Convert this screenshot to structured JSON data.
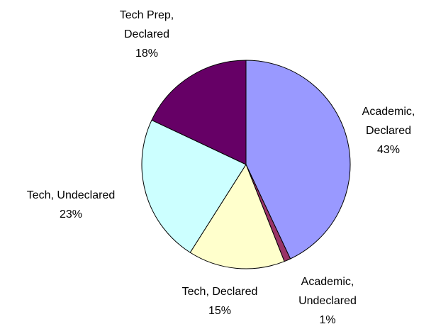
{
  "chart_data": {
    "type": "pie",
    "categories": [
      "Academic, Declared",
      "Academic, Undeclared",
      "Tech, Declared",
      "Tech, Undeclared",
      "Tech Prep, Declared"
    ],
    "values": [
      43,
      1,
      15,
      23,
      18
    ],
    "value_labels": [
      "43%",
      "1%",
      "15%",
      "23%",
      "18%"
    ],
    "colors": [
      "#9999ff",
      "#993366",
      "#ffffcc",
      "#ccffff",
      "#660066"
    ]
  }
}
